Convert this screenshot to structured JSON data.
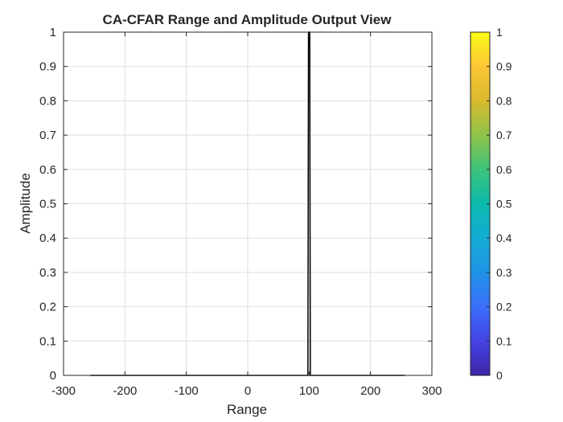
{
  "chart_data": {
    "type": "line",
    "title": "CA-CFAR Range and Amplitude Output View",
    "xlabel": "Range",
    "ylabel": "Amplitude",
    "xlim": [
      -300,
      300
    ],
    "ylim": [
      0,
      1
    ],
    "grid": true,
    "x_ticks": [
      -300,
      -200,
      -100,
      0,
      100,
      200,
      300
    ],
    "y_ticks": [
      0,
      0.1,
      0.2,
      0.3,
      0.4,
      0.5,
      0.6,
      0.7,
      0.8,
      0.9,
      1
    ],
    "series": [
      {
        "color": "#000000",
        "x": [
          -256,
          98,
          99,
          100,
          101,
          102,
          256
        ],
        "y": [
          0,
          0,
          1,
          1,
          1,
          0,
          0
        ]
      }
    ],
    "colorbar": {
      "colormap": "parula",
      "range": [
        0,
        1
      ],
      "ticks": [
        0,
        0.1,
        0.2,
        0.3,
        0.4,
        0.5,
        0.6,
        0.7,
        0.8,
        0.9,
        1
      ],
      "colors": [
        "#3e26a8",
        "#4443e4",
        "#3a6ffa",
        "#1f93e6",
        "#13acd4",
        "#0bbaad",
        "#3dc37a",
        "#8fc34a",
        "#d9b92c",
        "#fcc735",
        "#f9fb15"
      ]
    }
  }
}
